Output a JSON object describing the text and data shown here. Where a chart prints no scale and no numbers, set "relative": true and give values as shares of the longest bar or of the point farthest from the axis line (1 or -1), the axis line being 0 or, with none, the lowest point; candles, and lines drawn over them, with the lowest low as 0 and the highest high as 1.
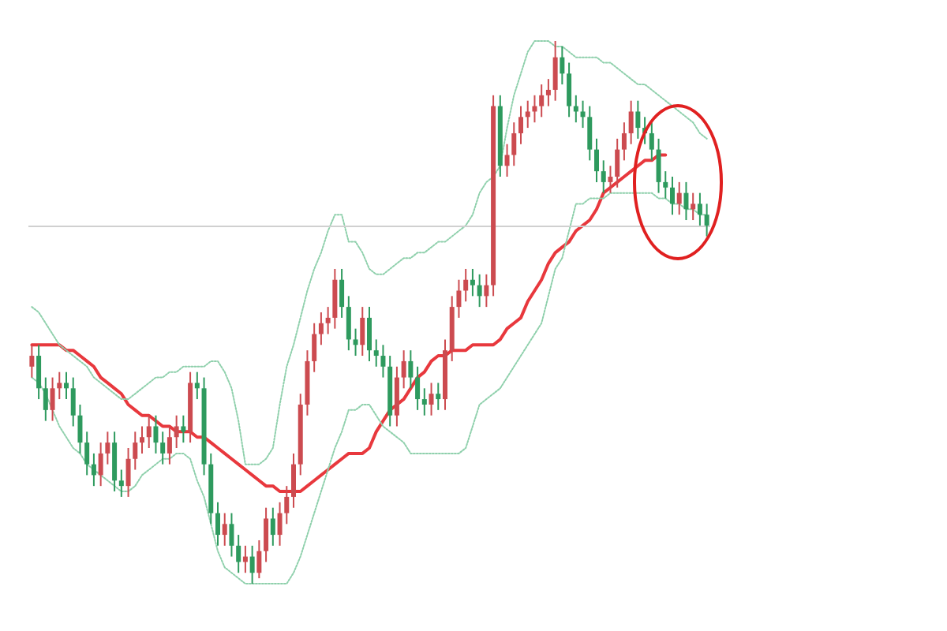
{
  "chart_data": [
    {
      "type": "candlestick",
      "relative": true,
      "grid": false,
      "categories": [
        null,
        null,
        null,
        null,
        null,
        null,
        null,
        null,
        null,
        null,
        null,
        null,
        null,
        null,
        null,
        null,
        null,
        null,
        null,
        null,
        null,
        null,
        null,
        null,
        null,
        null,
        null,
        null,
        null,
        null,
        null,
        null,
        null,
        null,
        null,
        null,
        null,
        null,
        null,
        null,
        null,
        null,
        null,
        null,
        null,
        null,
        null,
        null,
        null,
        null,
        null,
        null,
        null,
        null,
        null,
        null,
        null,
        null,
        null,
        null,
        null,
        null,
        null,
        null,
        null,
        null,
        null,
        null,
        null,
        null,
        null,
        null,
        null,
        null,
        null,
        null,
        null,
        null,
        null,
        null,
        null,
        null,
        null,
        null,
        null,
        null,
        null,
        null,
        null,
        null,
        null,
        null,
        null,
        null,
        null,
        null,
        null,
        null,
        null
      ],
      "ohlc": [
        [
          0.4,
          0.44,
          0.38,
          0.42
        ],
        [
          0.42,
          0.44,
          0.34,
          0.36
        ],
        [
          0.36,
          0.38,
          0.3,
          0.32
        ],
        [
          0.32,
          0.38,
          0.3,
          0.36
        ],
        [
          0.36,
          0.39,
          0.34,
          0.37
        ],
        [
          0.37,
          0.39,
          0.34,
          0.36
        ],
        [
          0.36,
          0.38,
          0.29,
          0.31
        ],
        [
          0.31,
          0.33,
          0.24,
          0.26
        ],
        [
          0.26,
          0.28,
          0.2,
          0.22
        ],
        [
          0.22,
          0.24,
          0.18,
          0.2
        ],
        [
          0.2,
          0.26,
          0.18,
          0.24
        ],
        [
          0.24,
          0.28,
          0.22,
          0.26
        ],
        [
          0.26,
          0.28,
          0.17,
          0.19
        ],
        [
          0.19,
          0.21,
          0.16,
          0.18
        ],
        [
          0.18,
          0.25,
          0.16,
          0.23
        ],
        [
          0.23,
          0.28,
          0.21,
          0.26
        ],
        [
          0.26,
          0.29,
          0.24,
          0.27
        ],
        [
          0.27,
          0.31,
          0.25,
          0.29
        ],
        [
          0.29,
          0.31,
          0.24,
          0.26
        ],
        [
          0.26,
          0.28,
          0.22,
          0.24
        ],
        [
          0.24,
          0.29,
          0.22,
          0.27
        ],
        [
          0.27,
          0.31,
          0.25,
          0.29
        ],
        [
          0.29,
          0.31,
          0.26,
          0.28
        ],
        [
          0.28,
          0.39,
          0.26,
          0.37
        ],
        [
          0.37,
          0.39,
          0.34,
          0.36
        ],
        [
          0.36,
          0.38,
          0.2,
          0.22
        ],
        [
          0.22,
          0.24,
          0.11,
          0.13
        ],
        [
          0.13,
          0.15,
          0.07,
          0.09
        ],
        [
          0.09,
          0.13,
          0.07,
          0.11
        ],
        [
          0.11,
          0.13,
          0.05,
          0.07
        ],
        [
          0.07,
          0.09,
          0.02,
          0.04
        ],
        [
          0.04,
          0.07,
          0.02,
          0.05
        ],
        [
          0.05,
          0.07,
          0,
          0.02
        ],
        [
          0.02,
          0.08,
          0.01,
          0.06
        ],
        [
          0.06,
          0.14,
          0.04,
          0.12
        ],
        [
          0.12,
          0.14,
          0.07,
          0.09
        ],
        [
          0.09,
          0.15,
          0.07,
          0.13
        ],
        [
          0.13,
          0.18,
          0.11,
          0.16
        ],
        [
          0.16,
          0.24,
          0.14,
          0.22
        ],
        [
          0.22,
          0.35,
          0.2,
          0.33
        ],
        [
          0.33,
          0.43,
          0.31,
          0.41
        ],
        [
          0.41,
          0.48,
          0.39,
          0.46
        ],
        [
          0.46,
          0.5,
          0.44,
          0.48
        ],
        [
          0.48,
          0.51,
          0.46,
          0.49
        ],
        [
          0.49,
          0.58,
          0.47,
          0.56
        ],
        [
          0.56,
          0.58,
          0.49,
          0.51
        ],
        [
          0.51,
          0.53,
          0.43,
          0.45
        ],
        [
          0.45,
          0.47,
          0.42,
          0.44
        ],
        [
          0.44,
          0.51,
          0.42,
          0.49
        ],
        [
          0.49,
          0.51,
          0.41,
          0.43
        ],
        [
          0.43,
          0.45,
          0.4,
          0.42
        ],
        [
          0.42,
          0.44,
          0.38,
          0.4
        ],
        [
          0.4,
          0.42,
          0.29,
          0.31
        ],
        [
          0.31,
          0.4,
          0.29,
          0.38
        ],
        [
          0.38,
          0.43,
          0.36,
          0.41
        ],
        [
          0.41,
          0.43,
          0.36,
          0.38
        ],
        [
          0.38,
          0.4,
          0.32,
          0.34
        ],
        [
          0.34,
          0.36,
          0.31,
          0.33
        ],
        [
          0.33,
          0.37,
          0.31,
          0.35
        ],
        [
          0.35,
          0.37,
          0.32,
          0.34
        ],
        [
          0.34,
          0.45,
          0.32,
          0.43
        ],
        [
          0.43,
          0.53,
          0.41,
          0.51
        ],
        [
          0.51,
          0.56,
          0.49,
          0.54
        ],
        [
          0.54,
          0.58,
          0.52,
          0.56
        ],
        [
          0.56,
          0.58,
          0.53,
          0.55
        ],
        [
          0.55,
          0.57,
          0.51,
          0.53
        ],
        [
          0.53,
          0.57,
          0.51,
          0.55
        ],
        [
          0.55,
          0.9,
          0.53,
          0.88
        ],
        [
          0.88,
          0.9,
          0.75,
          0.77
        ],
        [
          0.77,
          0.81,
          0.75,
          0.79
        ],
        [
          0.79,
          0.85,
          0.77,
          0.83
        ],
        [
          0.83,
          0.88,
          0.81,
          0.86
        ],
        [
          0.86,
          0.89,
          0.84,
          0.87
        ],
        [
          0.87,
          0.9,
          0.85,
          0.88
        ],
        [
          0.88,
          0.92,
          0.86,
          0.9
        ],
        [
          0.9,
          0.93,
          0.88,
          0.91
        ],
        [
          0.91,
          1,
          0.89,
          0.97
        ],
        [
          0.97,
          0.99,
          0.92,
          0.94
        ],
        [
          0.94,
          0.96,
          0.86,
          0.88
        ],
        [
          0.88,
          0.9,
          0.85,
          0.87
        ],
        [
          0.87,
          0.89,
          0.84,
          0.86
        ],
        [
          0.86,
          0.88,
          0.78,
          0.8
        ],
        [
          0.8,
          0.82,
          0.74,
          0.76
        ],
        [
          0.76,
          0.78,
          0.72,
          0.74
        ],
        [
          0.74,
          0.77,
          0.72,
          0.75
        ],
        [
          0.75,
          0.82,
          0.73,
          0.8
        ],
        [
          0.8,
          0.85,
          0.78,
          0.83
        ],
        [
          0.83,
          0.89,
          0.81,
          0.87
        ],
        [
          0.87,
          0.89,
          0.82,
          0.84
        ],
        [
          0.84,
          0.86,
          0.81,
          0.83
        ],
        [
          0.83,
          0.85,
          0.78,
          0.8
        ],
        [
          0.8,
          0.82,
          0.72,
          0.74
        ],
        [
          0.74,
          0.76,
          0.71,
          0.73
        ],
        [
          0.73,
          0.75,
          0.68,
          0.7
        ],
        [
          0.7,
          0.74,
          0.68,
          0.72
        ],
        [
          0.72,
          0.74,
          0.67,
          0.69
        ],
        [
          0.69,
          0.72,
          0.67,
          0.7
        ],
        [
          0.7,
          0.72,
          0.66,
          0.68
        ],
        [
          0.68,
          0.7,
          0.64,
          0.66
        ]
      ]
    },
    {
      "type": "line",
      "relative": true,
      "grid": false,
      "ref_lines": [
        {
          "axis": "y",
          "value": 0.66,
          "color": "#d0d0d0",
          "line_style": "solid"
        }
      ],
      "categories": [
        null,
        null,
        null,
        null,
        null,
        null,
        null,
        null,
        null,
        null,
        null,
        null,
        null,
        null,
        null,
        null,
        null,
        null,
        null,
        null,
        null,
        null,
        null,
        null,
        null,
        null,
        null,
        null,
        null,
        null,
        null,
        null,
        null,
        null,
        null,
        null,
        null,
        null,
        null,
        null,
        null,
        null,
        null,
        null,
        null,
        null,
        null,
        null,
        null,
        null,
        null,
        null,
        null,
        null,
        null,
        null,
        null,
        null,
        null,
        null,
        null,
        null,
        null,
        null,
        null,
        null,
        null,
        null,
        null,
        null,
        null,
        null,
        null,
        null,
        null,
        null,
        null,
        null,
        null,
        null,
        null,
        null,
        null,
        null,
        null,
        null,
        null,
        null,
        null,
        null,
        null,
        null,
        null,
        null,
        null,
        null,
        null,
        null,
        null
      ],
      "series": [
        {
          "type": "line",
          "color": "#e8383d",
          "values": [
            0.44,
            0.44,
            0.44,
            0.44,
            0.44,
            0.43,
            0.43,
            0.42,
            0.41,
            0.4,
            0.38,
            0.37,
            0.36,
            0.35,
            0.33,
            0.32,
            0.31,
            0.31,
            0.3,
            0.29,
            0.29,
            0.28,
            0.28,
            0.28,
            0.27,
            0.27,
            0.26,
            0.25,
            0.24,
            0.23,
            0.22,
            0.21,
            0.2,
            0.19,
            0.18,
            0.18,
            0.17,
            0.17,
            0.17,
            0.17,
            0.18,
            0.19,
            0.2,
            0.21,
            0.22,
            0.23,
            0.24,
            0.24,
            0.24,
            0.25,
            0.28,
            0.3,
            0.32,
            0.33,
            0.34,
            0.36,
            0.38,
            0.39,
            0.41,
            0.42,
            0.42,
            0.43,
            0.43,
            0.43,
            0.44,
            0.44,
            0.44,
            0.44,
            0.45,
            0.47,
            0.48,
            0.49,
            0.52,
            0.54,
            0.56,
            0.59,
            0.61,
            0.62,
            0.63,
            0.65,
            0.66,
            0.67,
            0.69,
            0.72,
            0.73,
            0.74,
            0.75,
            0.76,
            0.77,
            0.78,
            0.78,
            0.79,
            0.79,
            null,
            null,
            null,
            null,
            null,
            null
          ]
        },
        {
          "type": "line",
          "color": "#8fd0ac",
          "line_style": "dotted",
          "values": [
            0.51,
            0.5,
            0.48,
            0.46,
            0.44,
            0.43,
            0.42,
            0.41,
            0.4,
            0.38,
            0.37,
            0.36,
            0.35,
            0.34,
            0.34,
            0.35,
            0.36,
            0.37,
            0.38,
            0.38,
            0.39,
            0.39,
            0.4,
            0.4,
            0.4,
            0.4,
            0.41,
            0.41,
            0.39,
            0.36,
            0.3,
            0.22,
            0.22,
            0.22,
            0.23,
            0.25,
            0.33,
            0.4,
            0.44,
            0.49,
            0.54,
            0.58,
            0.61,
            0.65,
            0.68,
            0.68,
            0.63,
            0.63,
            0.61,
            0.58,
            0.57,
            0.57,
            0.58,
            0.59,
            0.6,
            0.6,
            0.61,
            0.61,
            0.62,
            0.63,
            0.63,
            0.64,
            0.65,
            0.66,
            0.68,
            0.72,
            0.74,
            0.75,
            0.77,
            0.84,
            0.9,
            0.94,
            0.98,
            1,
            1,
            1,
            0.99,
            0.99,
            0.98,
            0.97,
            0.97,
            0.97,
            0.97,
            0.96,
            0.96,
            0.95,
            0.94,
            0.93,
            0.92,
            0.92,
            0.91,
            0.9,
            0.89,
            0.88,
            0.87,
            0.86,
            0.85,
            0.83,
            0.82
          ]
        },
        {
          "type": "line",
          "color": "#8fd0ac",
          "line_style": "dotted",
          "values": [
            0.38,
            0.37,
            0.35,
            0.32,
            0.29,
            0.27,
            0.25,
            0.24,
            0.22,
            0.21,
            0.2,
            0.19,
            0.18,
            0.17,
            0.17,
            0.18,
            0.2,
            0.21,
            0.22,
            0.23,
            0.23,
            0.24,
            0.24,
            0.23,
            0.19,
            0.16,
            0.11,
            0.06,
            0.03,
            0.02,
            0.01,
            0,
            0,
            0,
            0,
            0,
            0,
            0,
            0.02,
            0.05,
            0.09,
            0.13,
            0.17,
            0.21,
            0.25,
            0.28,
            0.32,
            0.32,
            0.33,
            0.33,
            0.31,
            0.29,
            0.28,
            0.27,
            0.26,
            0.24,
            0.24,
            0.24,
            0.24,
            0.24,
            0.24,
            0.24,
            0.24,
            0.25,
            0.29,
            0.33,
            0.34,
            0.35,
            0.36,
            0.38,
            0.4,
            0.42,
            0.44,
            0.46,
            0.48,
            0.53,
            0.58,
            0.6,
            0.65,
            0.7,
            0.7,
            0.71,
            0.71,
            0.71,
            0.72,
            0.72,
            0.72,
            0.72,
            0.72,
            0.72,
            0.72,
            0.71,
            0.71,
            0.7,
            0.7,
            0.69,
            0.69,
            0.68,
            0.68
          ]
        }
      ]
    }
  ]
}
